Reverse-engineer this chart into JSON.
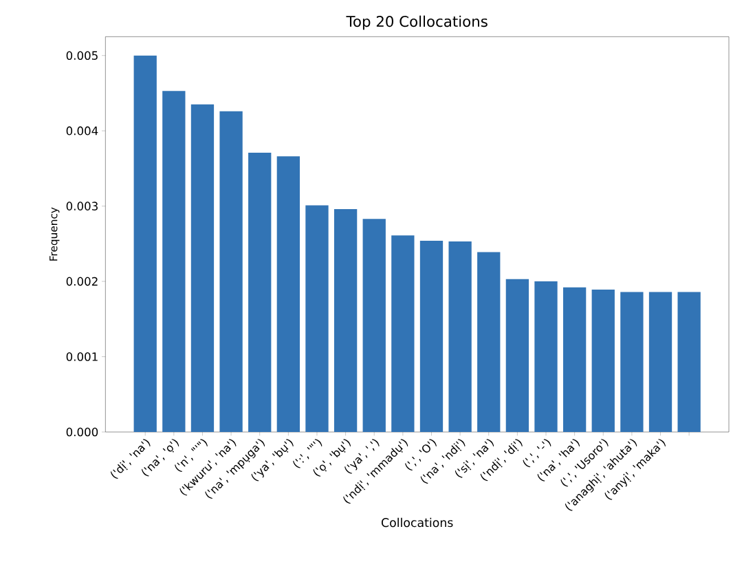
{
  "chart_data": {
    "type": "bar",
    "title": "Top 20 Collocations",
    "xlabel": "Collocations",
    "ylabel": "Frequency",
    "categories": [
      "('dị', 'na')",
      "('na', 'ọ')",
      "('n', \"'\")",
      "('kwuru', 'na')",
      "('na', 'mpụga')",
      "('ya', 'bụ')",
      "(':', '\"')",
      "('ọ', 'bụ')",
      "('ya', ',')",
      "('ndị', 'mmadụ')",
      "(',', 'O')",
      "('na', 'ndị')",
      "('sị', 'na')",
      "('ndị', 'dị')",
      "(',', '-')",
      "('na', 'ha')",
      "(',', 'Usoro')",
      "('anaghị', 'ahuta')",
      "('anyị', 'maka')",
      null
    ],
    "values": [
      0.005,
      0.00453,
      0.00435,
      0.00426,
      0.00371,
      0.00366,
      0.00301,
      0.00296,
      0.00283,
      0.00261,
      0.00254,
      0.00253,
      0.00239,
      0.00203,
      0.002,
      0.00192,
      0.00189,
      0.00186,
      0.00186,
      0.00186
    ],
    "color": "#3274b5",
    "ylim": [
      0,
      0.00525
    ],
    "yticks": [
      {
        "value": 0,
        "label": "0.000"
      },
      0.001,
      0.002,
      0.003,
      0.004,
      0.005
    ]
  }
}
